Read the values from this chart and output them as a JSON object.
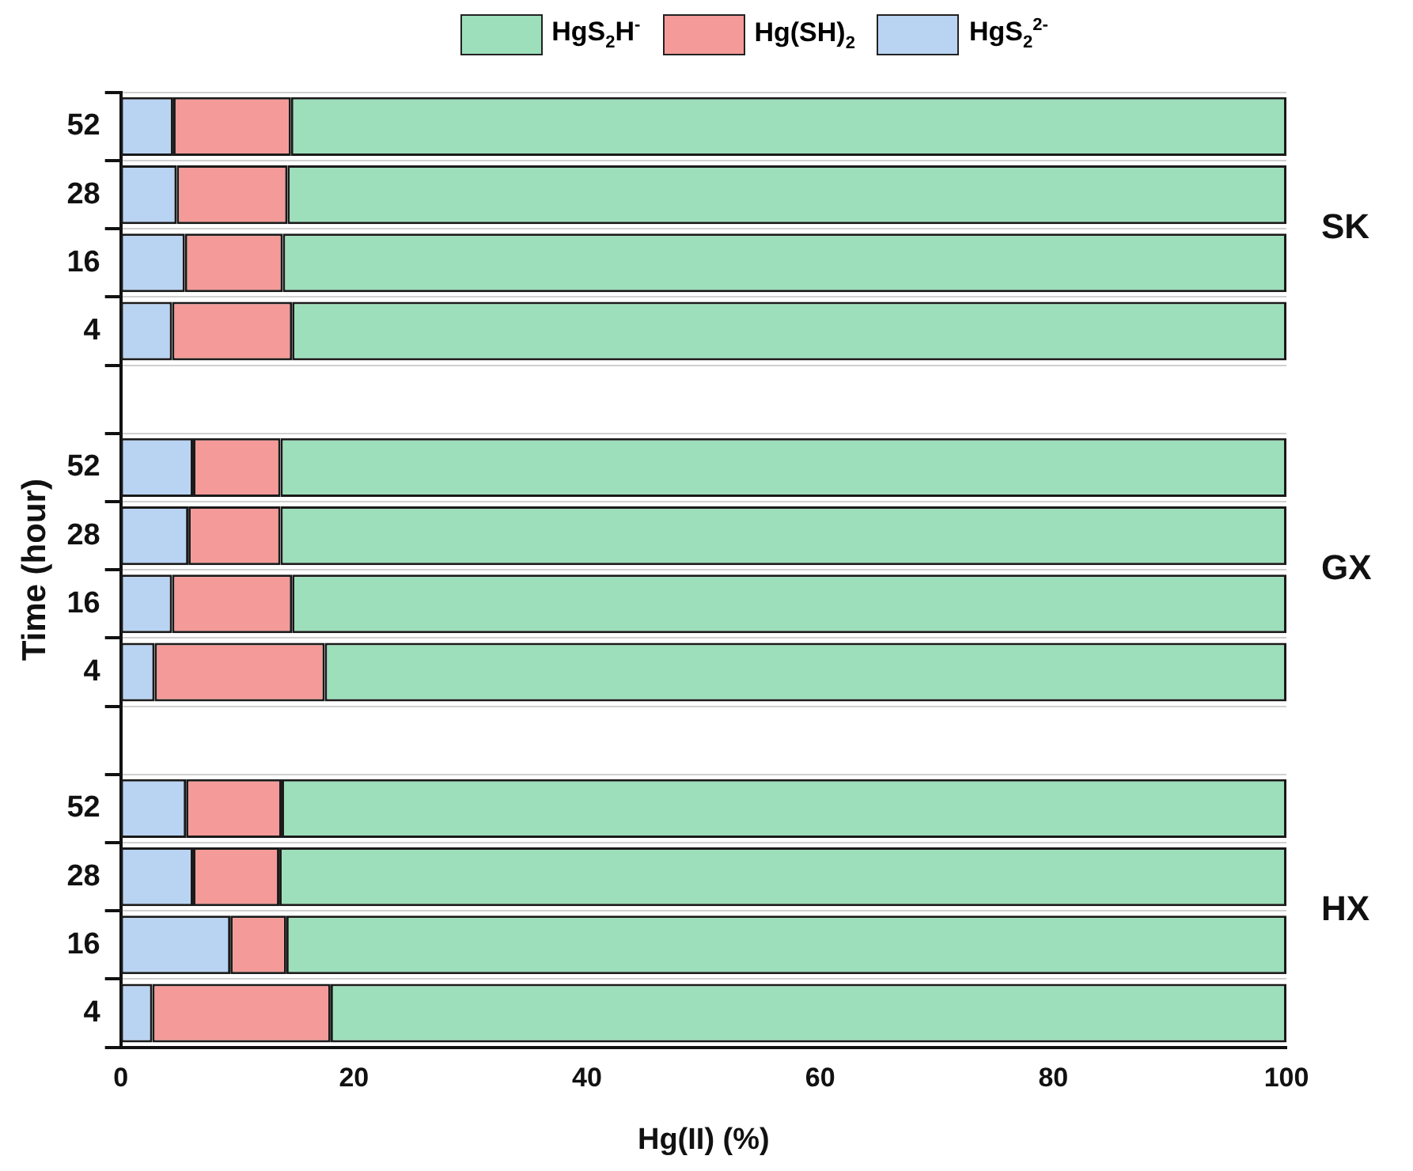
{
  "chart_data": {
    "type": "bar",
    "orientation": "horizontal",
    "stacked": true,
    "xlabel": "Hg(II) (%)",
    "ylabel": "Time (hour)",
    "categories": [
      "52",
      "28",
      "16",
      "4",
      null,
      "52",
      "28",
      "16",
      "4",
      null,
      "52",
      "28",
      "16",
      "4"
    ],
    "series": [
      {
        "name": "HgS$_{2}$$^{2-}$",
        "color": "#b9d3f2",
        "values": [
          4.5,
          4.8,
          5.5,
          4.4,
          null,
          6.2,
          5.8,
          4.4,
          2.9,
          null,
          5.6,
          6.2,
          9.4,
          2.7
        ]
      },
      {
        "name": "Hg(SH)$_{2}$",
        "color": "#f49a98",
        "values": [
          10.1,
          9.5,
          8.4,
          10.3,
          null,
          7.5,
          7.9,
          10.3,
          14.6,
          null,
          8.2,
          7.4,
          4.8,
          15.3
        ]
      },
      {
        "name": "HgS$_{2}$H$^{-}$",
        "color": "#9ddfbb",
        "values": [
          85.4,
          85.7,
          86.1,
          85.3,
          null,
          86.3,
          86.3,
          85.3,
          82.5,
          null,
          86.2,
          86.4,
          85.8,
          82.0
        ]
      }
    ],
    "xlim": [
      0,
      100
    ],
    "xticks": [
      0,
      20,
      40,
      60,
      80,
      100
    ],
    "grid": "y",
    "legend": "top",
    "annotations": [
      "SK",
      "GX",
      "HX"
    ]
  }
}
